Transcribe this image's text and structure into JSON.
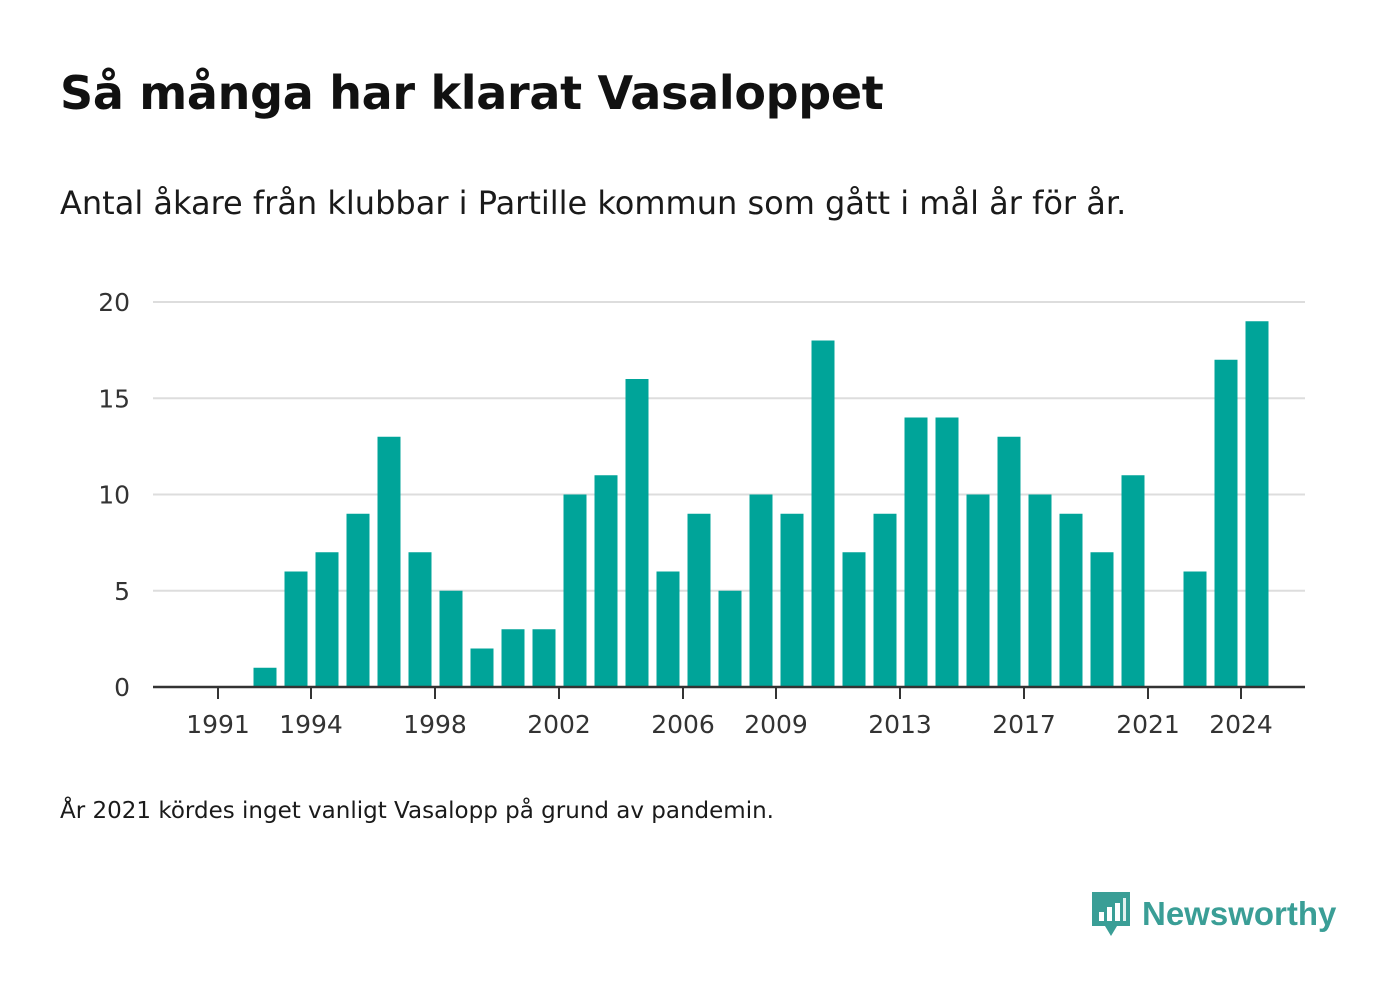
{
  "title": "Så många har klarat Vasaloppet",
  "subtitle": "Antal åkare från klubbar i Partille kommun som gått i mål år för år.",
  "note": "År 2021 kördes inget vanligt Vasalopp på grund av pandemin.",
  "brand": {
    "name": "Newsworthy",
    "icon": "newsworthy-logo-icon",
    "color": "#3a9e96"
  },
  "colors": {
    "bar": "#00a499",
    "grid": "#dddddd",
    "axis": "#333333"
  },
  "chart_data": {
    "type": "bar",
    "title": "Så många har klarat Vasaloppet",
    "subtitle": "Antal åkare från klubbar i Partille kommun som gått i mål år för år.",
    "xlabel": "",
    "ylabel": "",
    "ylim": [
      0,
      20
    ],
    "yticks": [
      0,
      5,
      10,
      15,
      20
    ],
    "xticks": [
      1991,
      1994,
      1998,
      2002,
      2006,
      2009,
      2013,
      2017,
      2021,
      2024
    ],
    "grid": true,
    "categories": [
      1991,
      1992,
      1993,
      1994,
      1995,
      1996,
      1997,
      1998,
      1999,
      2000,
      2001,
      2002,
      2003,
      2004,
      2005,
      2006,
      2007,
      2008,
      2009,
      2010,
      2011,
      2012,
      2013,
      2014,
      2015,
      2016,
      2017,
      2018,
      2019,
      2020,
      2021,
      2022,
      2023,
      2024
    ],
    "values": [
      0,
      1,
      6,
      7,
      9,
      13,
      7,
      5,
      2,
      3,
      3,
      10,
      11,
      16,
      6,
      9,
      5,
      10,
      9,
      18,
      7,
      9,
      14,
      14,
      10,
      13,
      10,
      9,
      7,
      11,
      0,
      6,
      17,
      19
    ]
  }
}
